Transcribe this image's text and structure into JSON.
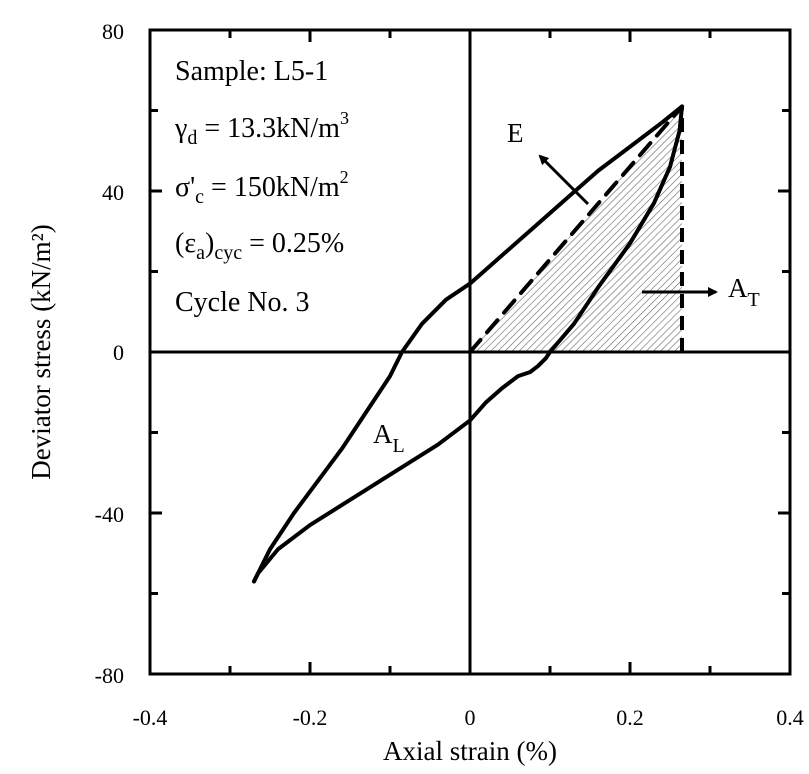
{
  "chart_data": {
    "type": "line",
    "xlabel": "Axial strain (%)",
    "ylabel": "Deviator stress (kN/m²)",
    "xlim": [
      -0.4,
      0.4
    ],
    "ylim": [
      -80,
      80
    ],
    "x_ticks": [
      -0.4,
      -0.2,
      0,
      0.2,
      0.4
    ],
    "y_ticks": [
      -80,
      -40,
      0,
      40,
      80
    ],
    "x_tick_labels": [
      "-0.4",
      "-0.2",
      "0",
      "0.2",
      "0.4"
    ],
    "y_tick_labels": [
      "-80",
      "-40",
      "0",
      "40",
      "80"
    ],
    "grid": false,
    "info_box": {
      "sample": "Sample: L5-1",
      "gamma_sym": "γ",
      "gamma_sub": "d",
      "gamma_val": " = 13.3kN/m",
      "gamma_sup": "3",
      "sigma_sym": "σ'",
      "sigma_sub": "c",
      "sigma_val": " = 150kN/m",
      "sigma_sup": "2",
      "eps_sym": "(ε",
      "eps_sub1": "a",
      "eps_mid": ")",
      "eps_sub2": "cyc",
      "eps_val": " = 0.25%",
      "cycle": "Cycle No. 3"
    },
    "annotations": {
      "E": "E",
      "AT_main": "A",
      "AT_sub": "T",
      "AL_main": "A",
      "AL_sub": "L"
    },
    "series": [
      {
        "kind": "loading",
        "x": [
          -0.27,
          -0.25,
          -0.22,
          -0.19,
          -0.16,
          -0.13,
          -0.1,
          -0.085,
          -0.06,
          -0.03,
          0,
          0.04,
          0.08,
          0.12,
          0.16,
          0.2,
          0.24,
          0.265
        ],
        "y": [
          -57,
          -49,
          -40,
          -32,
          -24,
          -15,
          -6,
          0,
          7,
          13,
          17,
          24,
          31,
          38,
          45,
          51,
          57,
          61
        ]
      },
      {
        "kind": "unloading",
        "x": [
          0.265,
          0.262,
          0.25,
          0.23,
          0.2,
          0.16,
          0.13,
          0.1,
          0.095,
          0.085,
          0.075,
          0.06,
          0.04,
          0.02,
          0,
          -0.04,
          -0.08,
          -0.12,
          -0.16,
          -0.2,
          -0.24,
          -0.265,
          -0.27
        ],
        "y": [
          61,
          55,
          46,
          37,
          27,
          16,
          7,
          0,
          -1.5,
          -3.5,
          -5,
          -6,
          -9,
          -12.5,
          -17,
          -23,
          -28,
          -33,
          -38,
          -43,
          -49,
          -55,
          -57
        ]
      },
      {
        "kind": "secant-E",
        "x": [
          0,
          0.265
        ],
        "y": [
          0,
          61
        ]
      }
    ],
    "shaded_area": {
      "x": [
        0,
        0.265,
        0.265
      ],
      "y": [
        0,
        0,
        61
      ]
    }
  }
}
